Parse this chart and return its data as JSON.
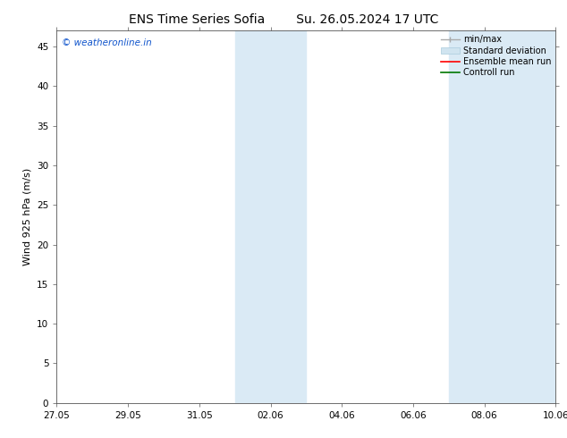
{
  "title_left": "ENS Time Series Sofia",
  "title_right": "Su. 26.05.2024 17 UTC",
  "ylabel": "Wind 925 hPa (m/s)",
  "ylim": [
    0,
    47
  ],
  "yticks": [
    0,
    5,
    10,
    15,
    20,
    25,
    30,
    35,
    40,
    45
  ],
  "bg_color": "#ffffff",
  "plot_bg_color": "#ffffff",
  "xtick_labels": [
    "27.05",
    "29.05",
    "31.05",
    "02.06",
    "04.06",
    "06.06",
    "08.06",
    "10.06"
  ],
  "xtick_positions": [
    0,
    2,
    4,
    6,
    8,
    10,
    12,
    14
  ],
  "x_start_day": 0,
  "x_end_day": 14,
  "shaded_band1_x1": 5.0,
  "shaded_band1_x2": 7.0,
  "shaded_band2_x1": 11.0,
  "shaded_band2_x2": 14.0,
  "shaded_color": "#daeaf5",
  "watermark_text": "© weatheronline.in",
  "watermark_color": "#1155cc",
  "title_fontsize": 10,
  "axis_label_fontsize": 8,
  "tick_fontsize": 7.5,
  "legend_fontsize": 7,
  "minmax_color": "#aaaaaa",
  "std_color": "#d0e4f0",
  "ensemble_color": "#ff0000",
  "control_color": "#007700"
}
